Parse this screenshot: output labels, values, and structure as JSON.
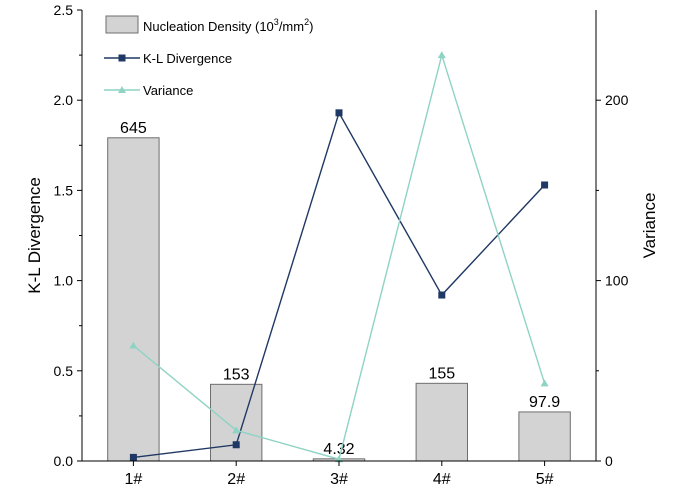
{
  "chart_data": {
    "type": "bar",
    "categories": [
      "1#",
      "2#",
      "3#",
      "4#",
      "5#"
    ],
    "left_axis": {
      "label": "K-L Divergence",
      "range": [
        0,
        2.5
      ],
      "ticks": [
        0.0,
        0.5,
        1.0,
        1.5,
        2.0,
        2.5
      ],
      "tick_labels": [
        "0.0",
        "0.5",
        "1.0",
        "1.5",
        "2.0",
        "2.5"
      ]
    },
    "right_axis": {
      "label": "Variance",
      "range": [
        0,
        250
      ],
      "ticks": [
        0,
        100,
        200
      ],
      "tick_labels": [
        "0",
        "100",
        "200"
      ]
    },
    "bars": {
      "name_parts": [
        "Nucleation Density (10",
        "3",
        "/mm",
        "2",
        ")"
      ],
      "values": [
        645,
        153,
        4.32,
        155,
        97.9
      ],
      "value_labels": [
        "645",
        "153",
        "4.32",
        "155",
        "97.9"
      ],
      "color": "#d3d3d3",
      "stroke": "#6e6e6e"
    },
    "series": [
      {
        "name": "K-L Divergence",
        "axis": "left",
        "marker": "square",
        "color": "#1f3864",
        "values": [
          0.02,
          0.09,
          1.93,
          0.92,
          1.53
        ]
      },
      {
        "name": "Variance",
        "axis": "right",
        "marker": "triangle",
        "color": "#8fd3c4",
        "values": [
          64,
          17,
          1,
          225,
          43
        ]
      }
    ],
    "legend_position": "top-left",
    "grid": false
  }
}
